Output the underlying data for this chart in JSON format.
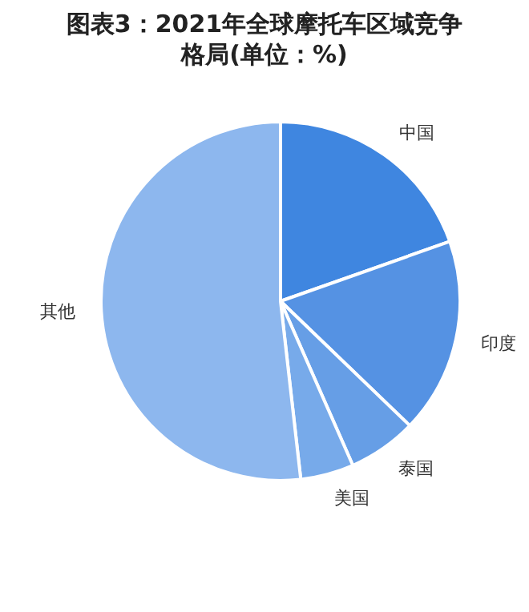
{
  "chart_data": {
    "type": "pie",
    "title": "图表3：2021年全球摩托车区域竞争格局(单位：%)",
    "categories": [
      "中国",
      "印度",
      "泰国",
      "美国",
      "其他"
    ],
    "values": [
      19.6,
      17.6,
      6.2,
      4.8,
      51.8
    ],
    "colors": [
      "#3f86e0",
      "#5592e3",
      "#669ee6",
      "#77aaea",
      "#8db7ee"
    ],
    "legend": false
  }
}
